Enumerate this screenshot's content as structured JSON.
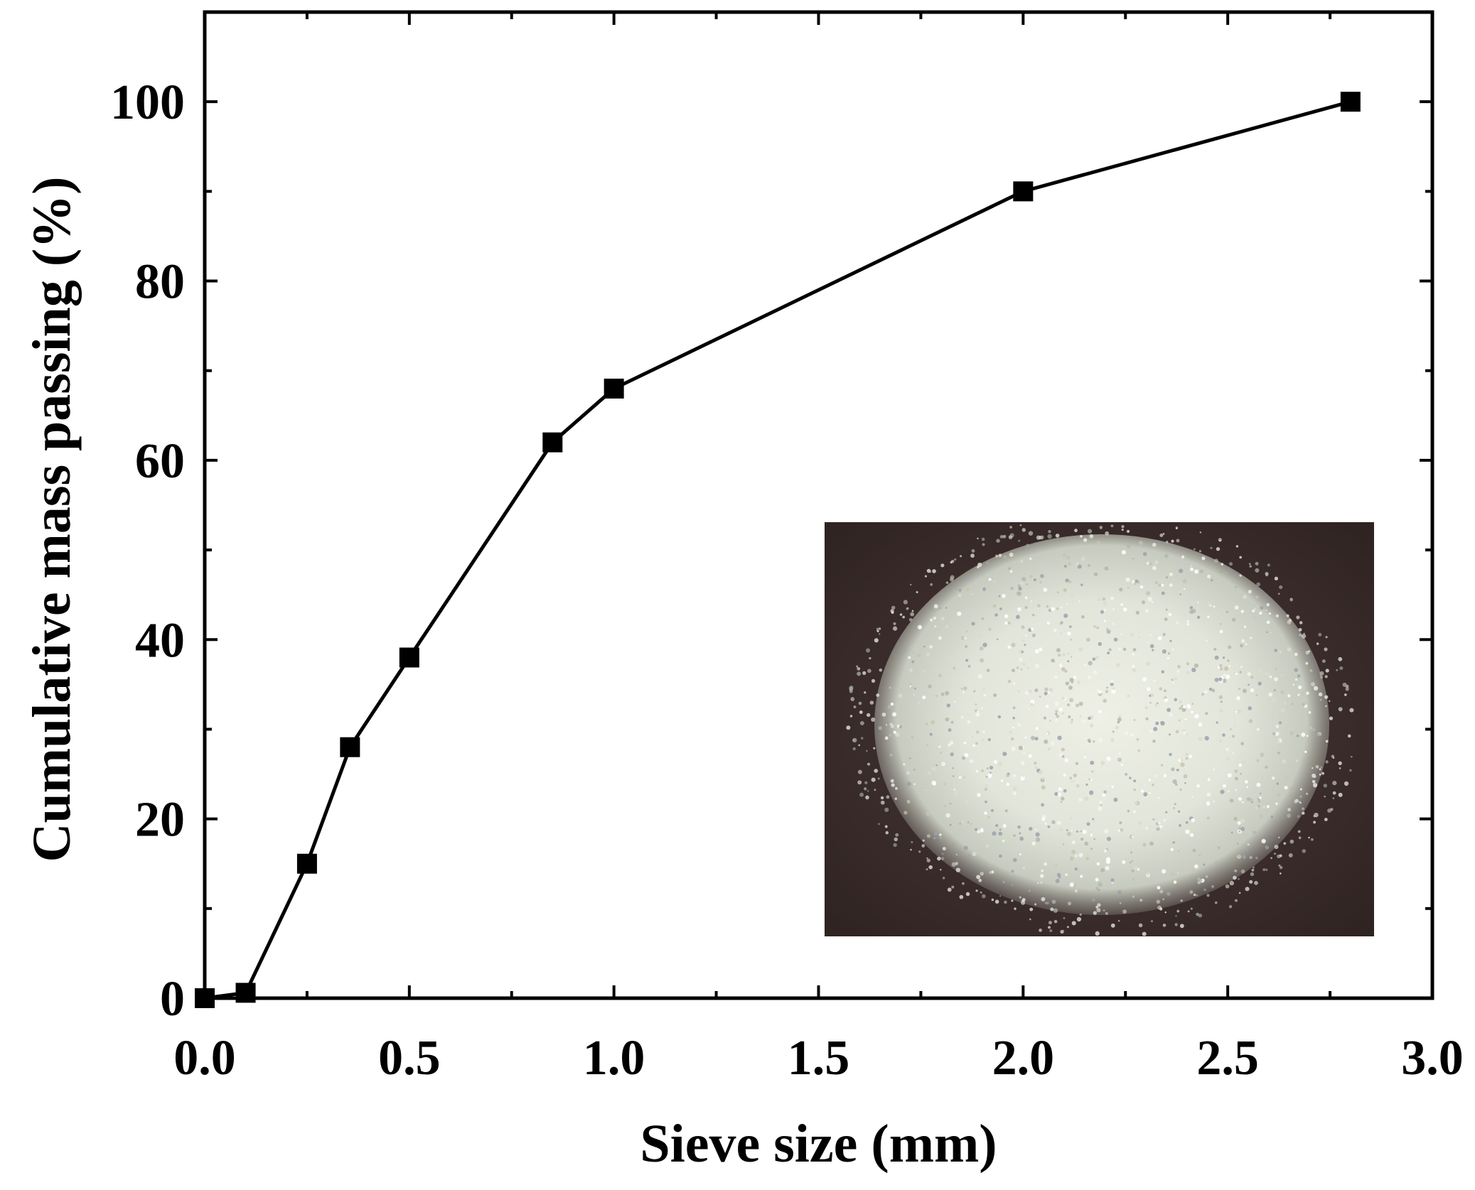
{
  "chart_data": {
    "type": "line",
    "title": "",
    "xlabel": "Sieve size (mm)",
    "ylabel": "Cumulative mass passing (%)",
    "xlim": [
      0,
      3.0
    ],
    "ylim": [
      0,
      110
    ],
    "xticks": [
      0.0,
      0.5,
      1.0,
      1.5,
      2.0,
      2.5,
      3.0
    ],
    "xtick_labels": [
      "0.0",
      "0.5",
      "1.0",
      "1.5",
      "2.0",
      "2.5",
      "3.0"
    ],
    "yticks": [
      0,
      20,
      40,
      60,
      80,
      100
    ],
    "ytick_labels": [
      "0",
      "20",
      "40",
      "60",
      "80",
      "100"
    ],
    "grid": false,
    "legend": "none",
    "series": [
      {
        "marker": "square",
        "color": "#000000",
        "x": [
          0.0,
          0.1,
          0.25,
          0.355,
          0.5,
          0.85,
          1.0,
          2.0,
          2.8
        ],
        "y": [
          0,
          0.6,
          15,
          28,
          38,
          62,
          68,
          90,
          100
        ]
      }
    ],
    "inset": {
      "type": "photo",
      "subject": "sand-pile",
      "position": "lower-right",
      "colors": {
        "background": "#3e2e2c",
        "sand": "#e9ebdf",
        "sand_edge": "#bfc2b4"
      }
    }
  }
}
